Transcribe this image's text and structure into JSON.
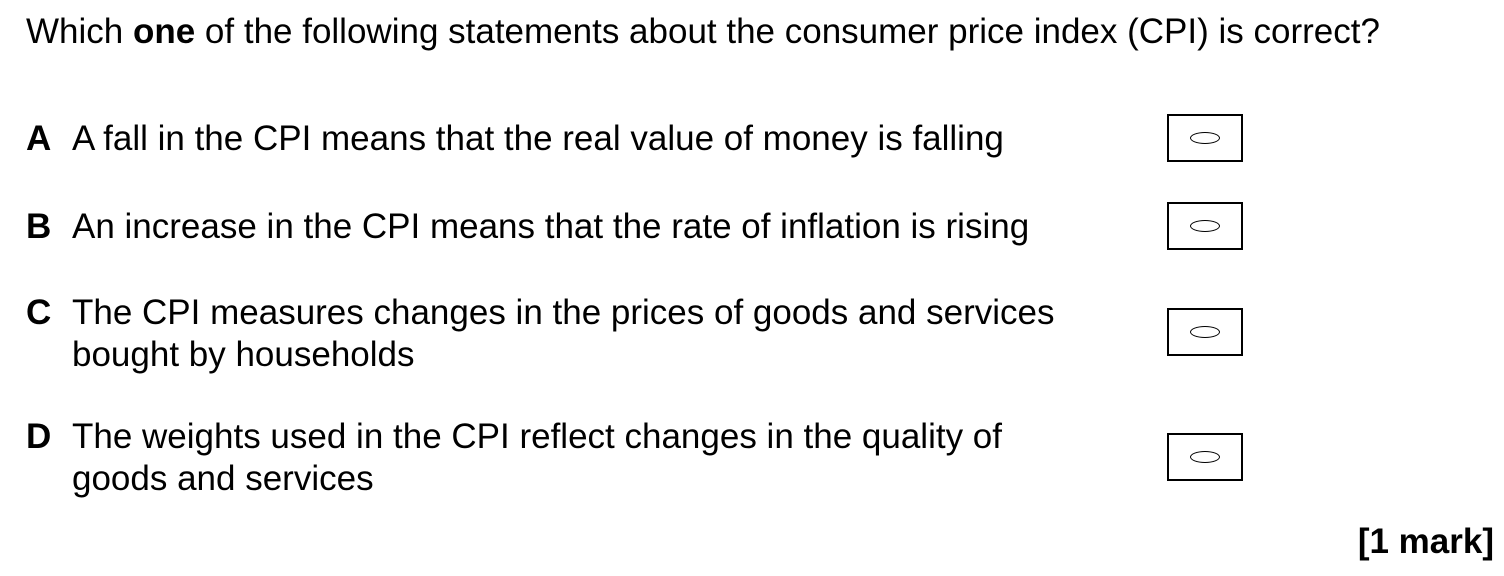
{
  "question": {
    "prefix": "Which ",
    "emphasis": "one",
    "suffix": " of the following statements about the consumer price index (CPI) is correct?"
  },
  "options": [
    {
      "letter": "A",
      "text": "A fall in the CPI means that the real value of money is falling"
    },
    {
      "letter": "B",
      "text": "An increase in the CPI means that the rate of inflation is rising"
    },
    {
      "letter": "C",
      "text": "The CPI measures changes in the prices of goods and services bought by households"
    },
    {
      "letter": "D",
      "text": "The weights used in the CPI reflect changes in the quality of goods and services"
    }
  ],
  "marks": "[1 mark]"
}
